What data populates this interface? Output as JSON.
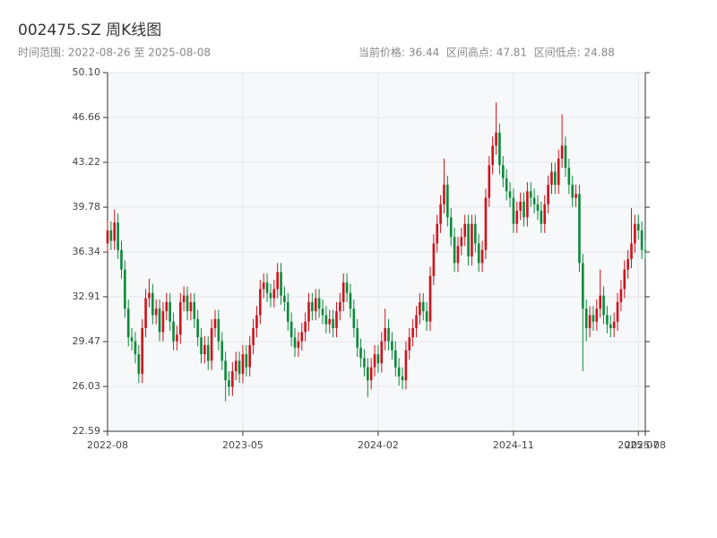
{
  "chart_data": {
    "type": "candlestick",
    "title": "002475.SZ 周K线图",
    "subtitle": "时间范围: 2022-08-26 至 2025-08-08",
    "stats": "当前价格: 36.44  区间高点: 47.81  区间低点: 24.88",
    "up_color": "#d0121b",
    "down_color": "#0b8a3a",
    "grid": true,
    "ylim": [
      22.59,
      50.1
    ],
    "yticks": [
      22.59,
      26.03,
      29.47,
      32.91,
      36.34,
      39.78,
      43.22,
      46.66,
      {
        "value": 50.1,
        "label": "50.10"
      }
    ],
    "categories": [
      "2022-08",
      null,
      null,
      null,
      null,
      null,
      null,
      null,
      null,
      null,
      null,
      null,
      null,
      null,
      null,
      null,
      null,
      null,
      null,
      null,
      null,
      null,
      null,
      null,
      null,
      null,
      null,
      null,
      null,
      null,
      null,
      null,
      null,
      null,
      null,
      null,
      null,
      null,
      null,
      "2023-05",
      null,
      null,
      null,
      null,
      null,
      null,
      null,
      null,
      null,
      null,
      null,
      null,
      null,
      null,
      null,
      null,
      null,
      null,
      null,
      null,
      null,
      null,
      null,
      null,
      null,
      null,
      null,
      null,
      null,
      null,
      null,
      null,
      null,
      null,
      null,
      null,
      null,
      null,
      "2024-02",
      null,
      null,
      null,
      null,
      null,
      null,
      null,
      null,
      null,
      null,
      null,
      null,
      null,
      null,
      null,
      null,
      null,
      null,
      null,
      null,
      null,
      null,
      null,
      null,
      null,
      null,
      null,
      null,
      null,
      null,
      null,
      null,
      null,
      null,
      null,
      null,
      null,
      null,
      "2024-11",
      null,
      null,
      null,
      null,
      null,
      null,
      null,
      null,
      null,
      null,
      null,
      null,
      null,
      null,
      null,
      null,
      null,
      null,
      null,
      null,
      null,
      null,
      null,
      null,
      null,
      null,
      null,
      null,
      null,
      null,
      null,
      null,
      null,
      null,
      null,
      "2025-07",
      null,
      "2025-08"
    ],
    "open": [
      37.0,
      38.0,
      37.2,
      38.6,
      36.5,
      35.0,
      32.0,
      29.8,
      29.5,
      28.5,
      27.0,
      30.5,
      32.8,
      33.2,
      31.5,
      32.0,
      30.2,
      31.8,
      32.5,
      31.0,
      29.5,
      30.0,
      32.5,
      33.0,
      31.8,
      32.5,
      31.2,
      29.8,
      28.5,
      29.2,
      28.0,
      30.5,
      31.2,
      29.5,
      28.0,
      26.5,
      26.0,
      27.2,
      28.0,
      27.0,
      28.5,
      27.5,
      29.2,
      30.5,
      31.5,
      33.5,
      34.0,
      33.2,
      32.8,
      33.5,
      34.8,
      33.0,
      32.5,
      31.0,
      29.8,
      29.0,
      29.5,
      30.2,
      31.0,
      32.5,
      31.8,
      32.8,
      32.0,
      31.5,
      30.8,
      31.2,
      30.5,
      31.8,
      32.5,
      34.0,
      33.2,
      32.0,
      30.5,
      29.0,
      28.2,
      27.5,
      26.5,
      27.5,
      28.5,
      27.8,
      29.5,
      30.5,
      29.5,
      28.8,
      27.5,
      26.8,
      26.5,
      28.8,
      29.8,
      30.5,
      31.5,
      32.5,
      31.8,
      31.0,
      34.5,
      37.0,
      38.5,
      40.0,
      41.5,
      39.0,
      37.5,
      35.5,
      36.8,
      37.5,
      38.5,
      36.0,
      38.5,
      37.0,
      35.5,
      36.5,
      40.5,
      43.0,
      44.5,
      45.5,
      43.0,
      42.0,
      41.0,
      40.5,
      38.5,
      39.5,
      40.2,
      39.0,
      41.0,
      40.5,
      40.0,
      39.5,
      38.5,
      40.0,
      41.5,
      42.5,
      41.5,
      43.5,
      44.5,
      42.8,
      41.5,
      40.5,
      40.8,
      35.5,
      32.0,
      30.5,
      31.5,
      31.0,
      32.0,
      33.0,
      31.5,
      30.8,
      30.5,
      31.0,
      32.5,
      33.5,
      35.0,
      35.8,
      37.0,
      38.5,
      38.0,
      36.5
    ],
    "high": [
      38.7,
      38.7,
      39.6,
      39.3,
      37.2,
      35.7,
      32.7,
      30.5,
      30.2,
      29.2,
      31.2,
      33.5,
      34.3,
      33.9,
      32.7,
      32.7,
      32.5,
      33.2,
      33.2,
      31.7,
      30.7,
      33.2,
      33.7,
      33.7,
      33.2,
      33.2,
      31.9,
      30.5,
      29.9,
      29.9,
      31.2,
      31.9,
      31.9,
      30.2,
      28.7,
      27.2,
      27.9,
      28.7,
      28.7,
      29.2,
      29.2,
      29.9,
      31.2,
      32.2,
      34.2,
      34.7,
      34.7,
      33.9,
      34.2,
      35.5,
      35.5,
      33.7,
      33.2,
      31.7,
      30.5,
      30.2,
      30.9,
      31.7,
      33.2,
      33.2,
      33.5,
      33.5,
      32.7,
      32.2,
      31.9,
      31.9,
      32.5,
      33.2,
      34.7,
      34.7,
      33.9,
      32.7,
      31.2,
      29.7,
      28.9,
      28.2,
      28.2,
      29.2,
      29.2,
      30.2,
      32.0,
      31.2,
      30.2,
      29.5,
      28.2,
      27.5,
      29.5,
      30.5,
      31.2,
      32.2,
      33.2,
      33.2,
      32.5,
      35.2,
      37.7,
      39.2,
      40.7,
      43.5,
      42.2,
      39.7,
      38.2,
      37.5,
      38.2,
      39.2,
      39.2,
      39.2,
      39.2,
      37.7,
      37.2,
      41.2,
      43.7,
      45.2,
      47.81,
      46.2,
      43.7,
      42.7,
      41.7,
      41.2,
      40.2,
      40.9,
      40.9,
      41.7,
      41.7,
      41.2,
      40.7,
      40.2,
      40.7,
      42.2,
      43.2,
      43.2,
      44.2,
      46.9,
      45.2,
      43.5,
      42.2,
      41.5,
      41.5,
      36.2,
      32.7,
      32.2,
      32.2,
      32.7,
      35.0,
      33.7,
      32.2,
      31.5,
      31.7,
      33.2,
      34.2,
      35.7,
      36.5,
      39.7,
      39.2,
      39.2,
      38.7,
      37.2
    ],
    "low": [
      36.3,
      36.5,
      36.5,
      35.8,
      34.3,
      31.3,
      29.1,
      28.8,
      27.8,
      26.3,
      26.3,
      29.8,
      32.1,
      30.8,
      30.8,
      29.5,
      29.5,
      31.1,
      30.3,
      28.8,
      28.8,
      29.3,
      31.8,
      31.1,
      31.1,
      30.5,
      29.1,
      27.8,
      27.8,
      27.3,
      27.3,
      29.8,
      28.8,
      27.3,
      24.88,
      25.3,
      25.3,
      26.5,
      26.3,
      26.3,
      26.8,
      26.8,
      28.5,
      29.8,
      30.8,
      32.8,
      32.5,
      32.1,
      32.1,
      32.8,
      32.3,
      31.8,
      30.3,
      29.1,
      28.3,
      28.3,
      28.8,
      29.5,
      30.3,
      31.1,
      31.1,
      31.3,
      30.8,
      30.1,
      30.1,
      29.8,
      29.8,
      31.1,
      31.8,
      32.5,
      31.3,
      29.8,
      28.3,
      27.5,
      26.8,
      25.2,
      25.8,
      26.8,
      27.1,
      27.1,
      28.8,
      28.8,
      28.1,
      26.8,
      26.1,
      25.8,
      25.8,
      28.1,
      29.1,
      29.8,
      30.8,
      31.1,
      30.3,
      30.3,
      33.8,
      36.3,
      37.8,
      39.3,
      38.3,
      36.8,
      34.8,
      34.8,
      36.1,
      36.8,
      35.3,
      35.3,
      36.3,
      34.8,
      34.8,
      35.8,
      39.8,
      42.3,
      43.8,
      42.3,
      41.3,
      40.3,
      39.8,
      37.8,
      37.8,
      38.8,
      38.3,
      38.3,
      39.8,
      39.3,
      38.8,
      37.8,
      37.8,
      39.3,
      40.8,
      40.8,
      40.8,
      42.8,
      42.1,
      40.8,
      39.8,
      39.8,
      34.8,
      27.2,
      29.5,
      29.8,
      30.3,
      30.3,
      31.3,
      30.8,
      30.1,
      29.8,
      29.8,
      30.3,
      31.8,
      32.8,
      34.3,
      35.1,
      36.3,
      37.3,
      35.8,
      35.8
    ],
    "close": [
      38.0,
      37.2,
      38.6,
      36.5,
      35.0,
      32.0,
      29.8,
      29.5,
      28.5,
      27.0,
      30.5,
      32.8,
      33.2,
      31.5,
      32.0,
      30.2,
      31.8,
      32.5,
      31.0,
      29.5,
      30.0,
      32.5,
      33.0,
      31.8,
      32.5,
      31.2,
      29.8,
      28.5,
      29.2,
      28.0,
      30.5,
      31.2,
      29.5,
      28.0,
      26.5,
      26.0,
      27.2,
      28.0,
      27.0,
      28.5,
      27.5,
      29.2,
      30.5,
      31.5,
      33.5,
      34.0,
      33.2,
      32.8,
      33.5,
      34.8,
      33.0,
      32.5,
      31.0,
      29.8,
      29.0,
      29.5,
      30.2,
      31.0,
      32.5,
      31.8,
      32.8,
      32.0,
      31.5,
      30.8,
      31.2,
      30.5,
      31.8,
      32.5,
      34.0,
      33.2,
      32.0,
      30.5,
      29.0,
      28.2,
      27.5,
      26.5,
      27.5,
      28.5,
      27.8,
      29.5,
      30.5,
      29.5,
      28.8,
      27.5,
      26.8,
      26.5,
      28.8,
      29.8,
      30.5,
      31.5,
      32.5,
      31.8,
      31.0,
      34.5,
      37.0,
      38.5,
      40.0,
      41.5,
      39.0,
      37.5,
      35.5,
      36.8,
      37.5,
      38.5,
      36.0,
      38.5,
      37.0,
      35.5,
      36.5,
      40.5,
      43.0,
      44.5,
      45.5,
      43.0,
      42.0,
      41.0,
      40.5,
      38.5,
      39.5,
      40.2,
      39.0,
      41.0,
      40.5,
      40.0,
      39.5,
      38.5,
      40.0,
      41.5,
      42.5,
      41.5,
      43.5,
      44.5,
      42.8,
      41.5,
      40.5,
      40.8,
      35.5,
      32.0,
      30.5,
      31.5,
      31.0,
      32.0,
      33.0,
      31.5,
      30.8,
      30.5,
      31.0,
      32.5,
      33.5,
      35.0,
      35.8,
      37.0,
      38.5,
      38.0,
      36.5,
      36.44
    ]
  }
}
